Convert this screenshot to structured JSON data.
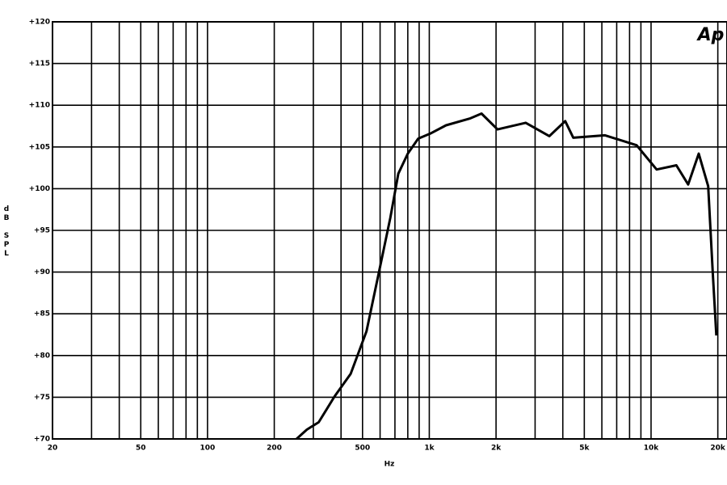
{
  "chart_data": {
    "type": "line",
    "logo": "Ap",
    "y_label": "dB SPL",
    "x_label": "Hz",
    "x": [
      252,
      280,
      317,
      374,
      442,
      521,
      590,
      667,
      725,
      800,
      891,
      1010,
      1190,
      1520,
      1720,
      2030,
      2720,
      3480,
      4100,
      4460,
      6200,
      8610,
      10600,
      13000,
      14700,
      16400,
      18100,
      19000,
      19700
    ],
    "series": [
      {
        "name": "SPL",
        "color": "#000000",
        "values": [
          70,
          71.1,
          72,
          75.1,
          77.8,
          82.9,
          89.7,
          96.5,
          101.8,
          104.2,
          106,
          106.6,
          107.6,
          108.4,
          109,
          107.1,
          107.9,
          106.3,
          108.1,
          106.1,
          106.4,
          105.2,
          102.3,
          102.8,
          100.5,
          104.2,
          100.3,
          89.7,
          82.4
        ]
      }
    ],
    "xlog": true,
    "grid": true,
    "xlim": [
      20,
      22000
    ],
    "xticks": [
      20,
      50,
      100,
      200,
      500,
      {
        "value": 1000,
        "label": "1k"
      },
      {
        "value": 2000,
        "label": "2k"
      },
      {
        "value": 5000,
        "label": "5k"
      },
      {
        "value": 10000,
        "label": "10k"
      },
      {
        "value": 20000,
        "label": "20k"
      }
    ],
    "xgrid": [
      30,
      40,
      60,
      70,
      80,
      90,
      300,
      400,
      600,
      700,
      800,
      900,
      3000,
      4000,
      6000,
      7000,
      8000,
      9000
    ],
    "ylim": [
      70,
      120
    ],
    "yticks": [
      {
        "value": 70,
        "label": "+70"
      },
      {
        "value": 75,
        "label": "+75"
      },
      {
        "value": 80,
        "label": "+80"
      },
      {
        "value": 85,
        "label": "+85"
      },
      {
        "value": 90,
        "label": "+90"
      },
      {
        "value": 95,
        "label": "+95"
      },
      {
        "value": 100,
        "label": "+100"
      },
      {
        "value": 105,
        "label": "+105"
      },
      {
        "value": 110,
        "label": "+110"
      },
      {
        "value": 115,
        "label": "+115"
      },
      {
        "value": 120,
        "label": "+120"
      }
    ]
  }
}
